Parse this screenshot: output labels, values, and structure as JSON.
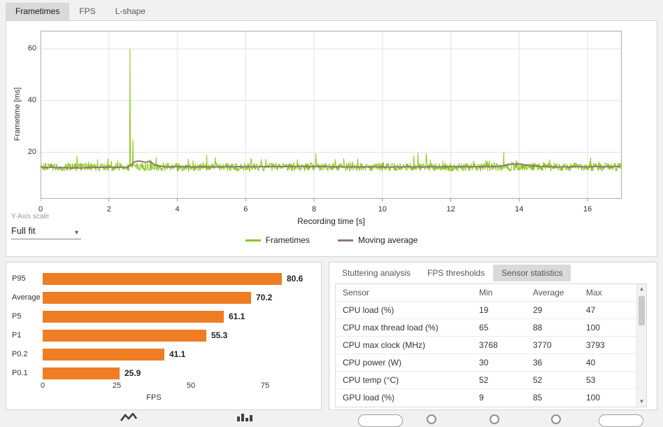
{
  "colors": {
    "active_tab_bg": "#d9d9d9",
    "frametimes_line": "#8dc71e",
    "moving_average_line": "#8b7a72",
    "bar_fill": "#ef7d23"
  },
  "top_tabs": [
    {
      "label": "Frametimes",
      "active": true
    },
    {
      "label": "FPS",
      "active": false
    },
    {
      "label": "L-shape",
      "active": false
    }
  ],
  "y_axis_scale": {
    "label": "Y-Axis scale",
    "value": "Full fit"
  },
  "analysis_tabs": [
    {
      "label": "Stuttering analysis",
      "active": false
    },
    {
      "label": "FPS thresholds",
      "active": false
    },
    {
      "label": "Sensor statistics",
      "active": true
    }
  ],
  "sensor_table": {
    "columns": [
      "Sensor",
      "Min",
      "Average",
      "Max"
    ],
    "rows": [
      {
        "sensor": "CPU load (%)",
        "min": "19",
        "average": "29",
        "max": "47"
      },
      {
        "sensor": "CPU max thread load (%)",
        "min": "65",
        "average": "88",
        "max": "100"
      },
      {
        "sensor": "CPU max clock (MHz)",
        "min": "3768",
        "average": "3770",
        "max": "3793"
      },
      {
        "sensor": "CPU power (W)",
        "min": "30",
        "average": "36",
        "max": "40"
      },
      {
        "sensor": "CPU temp (°C)",
        "min": "52",
        "average": "52",
        "max": "53"
      },
      {
        "sensor": "GPU load (%)",
        "min": "9",
        "average": "85",
        "max": "100"
      }
    ]
  },
  "chart_data": [
    {
      "type": "line",
      "title": "",
      "xlabel": "Recording time [s]",
      "ylabel": "Frametime [ms]",
      "xlim": [
        0,
        17
      ],
      "ylim": [
        2,
        67
      ],
      "x_ticks": [
        0,
        2,
        4,
        6,
        8,
        10,
        12,
        14,
        16
      ],
      "y_ticks": [
        20,
        40,
        60
      ],
      "grid": true,
      "legend_position": "bottom",
      "series": [
        {
          "name": "Frametimes",
          "color": "#8dc71e",
          "baseline_ms": 14.3,
          "noise_ms": 1.6,
          "spikes": [
            {
              "t": 2.62,
              "value_ms": 60.0
            },
            {
              "t": 2.7,
              "value_ms": 25.0
            },
            {
              "t": 13.55,
              "value_ms": 20.0
            }
          ]
        },
        {
          "name": "Moving average",
          "color": "#8b7a72",
          "points": [
            [
              0,
              14.2
            ],
            [
              1,
              14.0
            ],
            [
              2,
              14.2
            ],
            [
              2.55,
              14.2
            ],
            [
              2.75,
              16.3
            ],
            [
              2.9,
              16.6
            ],
            [
              3.05,
              16.1
            ],
            [
              3.2,
              16.6
            ],
            [
              3.35,
              15.0
            ],
            [
              3.6,
              14.4
            ],
            [
              5,
              14.4
            ],
            [
              8,
              14.5
            ],
            [
              10,
              14.3
            ],
            [
              12,
              14.4
            ],
            [
              13.4,
              14.5
            ],
            [
              13.7,
              15.4
            ],
            [
              14.0,
              15.5
            ],
            [
              14.4,
              14.7
            ],
            [
              15,
              14.4
            ],
            [
              16,
              14.4
            ],
            [
              17,
              14.5
            ]
          ]
        }
      ]
    },
    {
      "type": "bar",
      "orientation": "horizontal",
      "categories": [
        "P95",
        "Average",
        "P5",
        "P1",
        "P0.2",
        "P0.1"
      ],
      "values": [
        80.6,
        70.2,
        61.1,
        55.3,
        41.1,
        25.9
      ],
      "xlabel": "FPS",
      "x_ticks": [
        0,
        25,
        50,
        75
      ],
      "xlim": [
        0,
        85
      ],
      "bar_color": "#ef7d23"
    }
  ]
}
